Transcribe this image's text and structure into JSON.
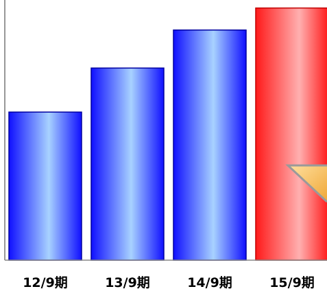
{
  "chart_data": {
    "type": "bar",
    "categories": [
      "12/9期",
      "13/9期",
      "14/9期",
      "15/9期"
    ],
    "series": [
      {
        "values": [
          74,
          96,
          115,
          126
        ]
      }
    ],
    "ylim": [
      0,
      130
    ],
    "grid": false,
    "colors": {
      "default": "#1a1aff",
      "default_edge": "#0000a0",
      "highlight": "#ff1a1a",
      "highlight_edge": "#c00000",
      "axis": "#777777",
      "marker": "#f4bc5a"
    },
    "highlight_index": 3
  }
}
